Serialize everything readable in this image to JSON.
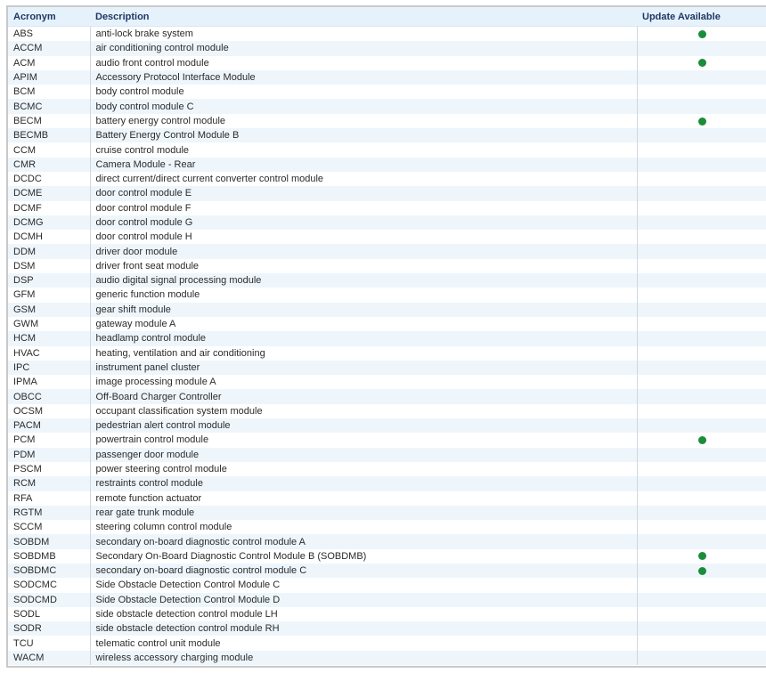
{
  "table": {
    "headers": {
      "acronym": "Acronym",
      "description": "Description",
      "update": "Update Available"
    },
    "rows": [
      {
        "acronym": "ABS",
        "description": "anti-lock brake system",
        "update": true
      },
      {
        "acronym": "ACCM",
        "description": "air conditioning control module",
        "update": false
      },
      {
        "acronym": "ACM",
        "description": "audio front control module",
        "update": true
      },
      {
        "acronym": "APIM",
        "description": "Accessory Protocol Interface Module",
        "update": false
      },
      {
        "acronym": "BCM",
        "description": "body control module",
        "update": false
      },
      {
        "acronym": "BCMC",
        "description": "body control module C",
        "update": false
      },
      {
        "acronym": "BECM",
        "description": "battery energy control module",
        "update": true
      },
      {
        "acronym": "BECMB",
        "description": "Battery Energy Control Module B",
        "update": false
      },
      {
        "acronym": "CCM",
        "description": "cruise control module",
        "update": false
      },
      {
        "acronym": "CMR",
        "description": "Camera Module - Rear",
        "update": false
      },
      {
        "acronym": "DCDC",
        "description": "direct current/direct current converter control module",
        "update": false
      },
      {
        "acronym": "DCME",
        "description": "door control module E",
        "update": false
      },
      {
        "acronym": "DCMF",
        "description": "door control module F",
        "update": false
      },
      {
        "acronym": "DCMG",
        "description": "door control module G",
        "update": false
      },
      {
        "acronym": "DCMH",
        "description": "door control module H",
        "update": false
      },
      {
        "acronym": "DDM",
        "description": "driver door module",
        "update": false
      },
      {
        "acronym": "DSM",
        "description": "driver front seat module",
        "update": false
      },
      {
        "acronym": "DSP",
        "description": "audio digital signal processing module",
        "update": false
      },
      {
        "acronym": "GFM",
        "description": "generic function module",
        "update": false
      },
      {
        "acronym": "GSM",
        "description": "gear shift module",
        "update": false
      },
      {
        "acronym": "GWM",
        "description": "gateway module A",
        "update": false
      },
      {
        "acronym": "HCM",
        "description": "headlamp control module",
        "update": false
      },
      {
        "acronym": "HVAC",
        "description": "heating, ventilation and air conditioning",
        "update": false
      },
      {
        "acronym": "IPC",
        "description": "instrument panel cluster",
        "update": false
      },
      {
        "acronym": "IPMA",
        "description": "image processing module A",
        "update": false
      },
      {
        "acronym": "OBCC",
        "description": "Off-Board Charger Controller",
        "update": false
      },
      {
        "acronym": "OCSM",
        "description": "occupant classification system module",
        "update": false
      },
      {
        "acronym": "PACM",
        "description": "pedestrian alert control module",
        "update": false
      },
      {
        "acronym": "PCM",
        "description": "powertrain control module",
        "update": true
      },
      {
        "acronym": "PDM",
        "description": "passenger door module",
        "update": false
      },
      {
        "acronym": "PSCM",
        "description": "power steering control module",
        "update": false
      },
      {
        "acronym": "RCM",
        "description": "restraints control module",
        "update": false
      },
      {
        "acronym": "RFA",
        "description": "remote function actuator",
        "update": false
      },
      {
        "acronym": "RGTM",
        "description": "rear gate trunk module",
        "update": false
      },
      {
        "acronym": "SCCM",
        "description": "steering column control module",
        "update": false
      },
      {
        "acronym": "SOBDM",
        "description": "secondary on-board diagnostic control module A",
        "update": false
      },
      {
        "acronym": "SOBDMB",
        "description": "Secondary On-Board Diagnostic Control Module B (SOBDMB)",
        "update": true
      },
      {
        "acronym": "SOBDMC",
        "description": "secondary on-board diagnostic control module C",
        "update": true
      },
      {
        "acronym": "SODCMC",
        "description": "Side Obstacle Detection Control Module C",
        "update": false
      },
      {
        "acronym": "SODCMD",
        "description": "Side Obstacle Detection Control Module D",
        "update": false
      },
      {
        "acronym": "SODL",
        "description": "side obstacle detection control module LH",
        "update": false
      },
      {
        "acronym": "SODR",
        "description": "side obstacle detection control module RH",
        "update": false
      },
      {
        "acronym": "TCU",
        "description": "telematic control unit module",
        "update": false
      },
      {
        "acronym": "WACM",
        "description": "wireless accessory charging module",
        "update": false
      }
    ]
  },
  "colors": {
    "update_dot": "#1a8c3a",
    "header_bg": "#e6f2fb",
    "header_text": "#1f3864",
    "stripe": "#eef6fc"
  },
  "icons": {
    "update_indicator": "green-dot-icon"
  }
}
